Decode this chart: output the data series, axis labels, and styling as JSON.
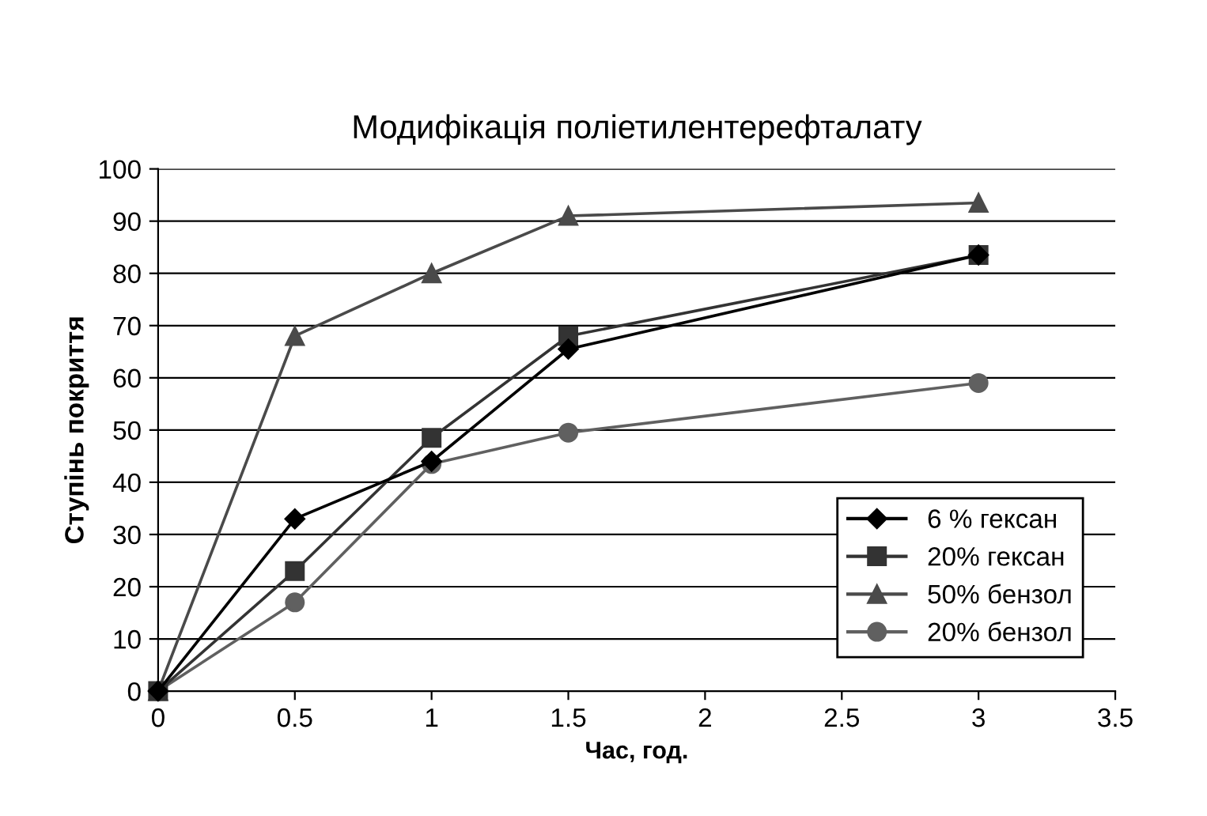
{
  "chart_data": {
    "type": "line",
    "title": "Модифікація поліетилентерефталату",
    "xlabel": "Час, год.",
    "ylabel": "Ступінь покриття",
    "x": [
      0,
      0.5,
      1,
      1.5,
      3
    ],
    "series": [
      {
        "name": "6 % гексан",
        "color": "#000000",
        "marker": "diamond",
        "values": [
          0,
          33,
          44,
          65.5,
          83.5
        ]
      },
      {
        "name": "20% гексан",
        "color": "#333333",
        "marker": "square",
        "values": [
          0,
          23,
          48.5,
          68,
          83.5
        ]
      },
      {
        "name": "50% бензол",
        "color": "#4a4a4a",
        "marker": "triangle",
        "values": [
          0,
          68,
          80,
          91,
          93.5
        ]
      },
      {
        "name": "20% бензол",
        "color": "#606060",
        "marker": "circle",
        "values": [
          0,
          17,
          43.5,
          49.5,
          59
        ]
      }
    ],
    "xlim": [
      0,
      3.5
    ],
    "xticks": [
      0,
      0.5,
      1,
      1.5,
      2,
      2.5,
      3,
      3.5
    ],
    "ylim": [
      0,
      100
    ],
    "yticks": [
      0,
      10,
      20,
      30,
      40,
      50,
      60,
      70,
      80,
      90,
      100
    ],
    "grid": "y",
    "legend": "bottom right",
    "line_style": "solid"
  }
}
